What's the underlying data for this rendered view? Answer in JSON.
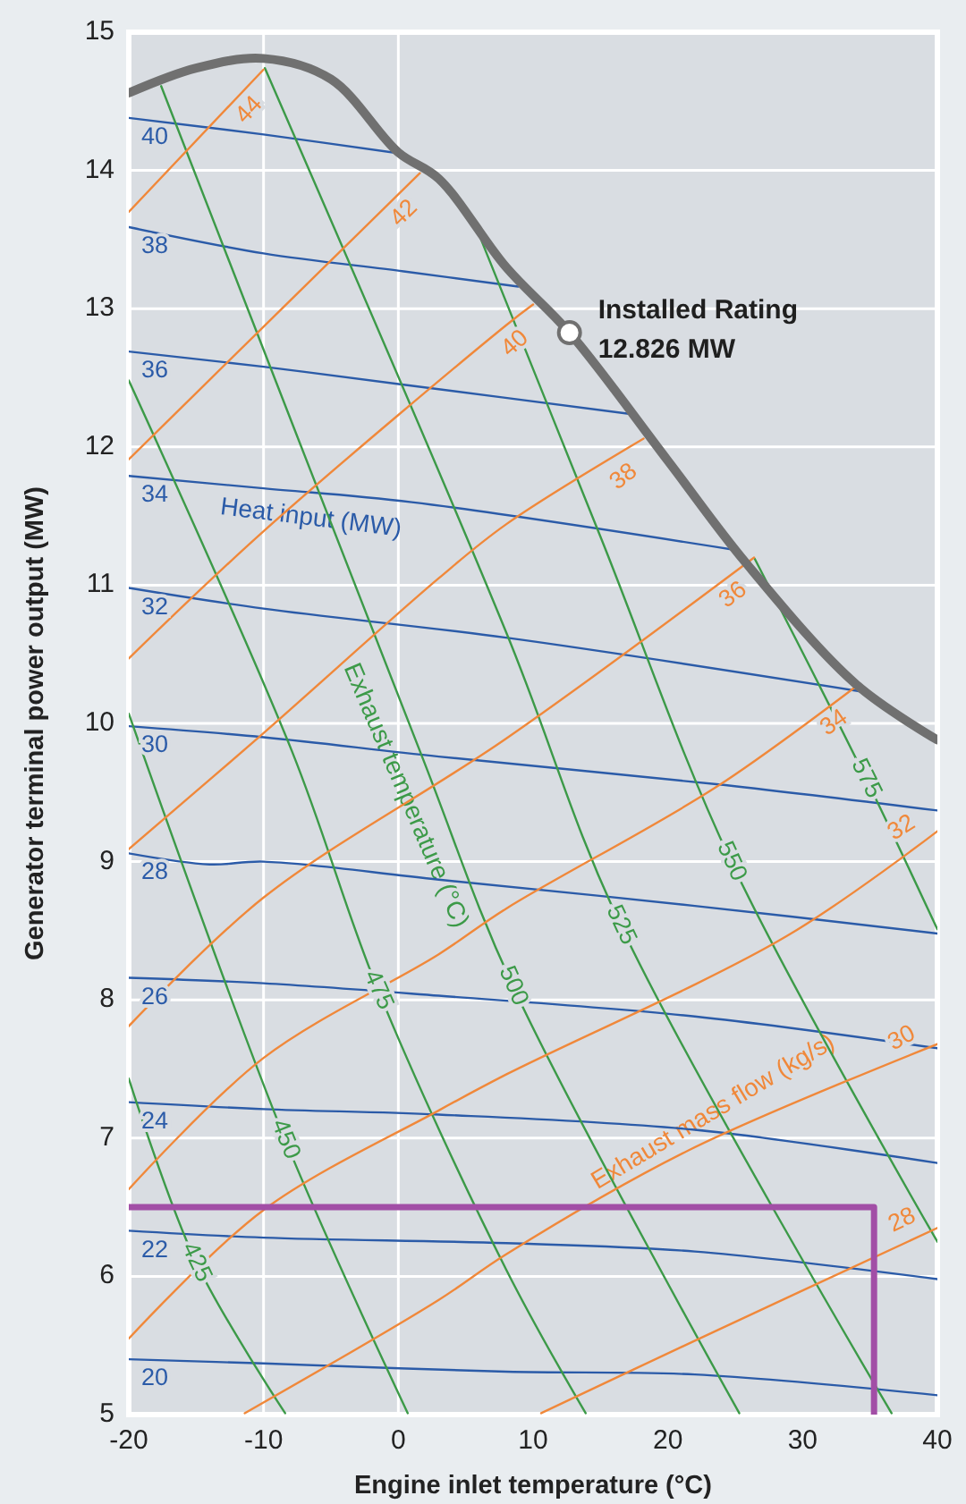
{
  "chart_data": {
    "type": "line",
    "xlabel": "Engine inlet temperature (°C)",
    "ylabel": "Generator terminal power output (MW)",
    "xlim": [
      -20,
      40
    ],
    "ylim": [
      5,
      15
    ],
    "xticks": [
      -20,
      -10,
      0,
      10,
      20,
      30,
      40
    ],
    "yticks": [
      5,
      6,
      7,
      8,
      9,
      10,
      11,
      12,
      13,
      14,
      15
    ],
    "grid": "y",
    "ref_lines": [
      {
        "axis": "x",
        "value": -10,
        "color": "#ffffff"
      },
      {
        "axis": "x",
        "value": 0,
        "color": "#ffffff"
      }
    ],
    "annotations": [
      "Heat input (MW)",
      "Exhaust temperature (°C)",
      "Exhaust mass flow (kg/s)",
      {
        "text": "Installed Rating",
        "x": 12.7,
        "y": 12.826
      }
    ],
    "series": [
      {
        "name": "40",
        "color": "#2b5ba8",
        "x": [
          -20,
          -10,
          0.3
        ],
        "values": [
          14.38,
          14.26,
          14.12
        ]
      },
      {
        "name": "38",
        "color": "#2b5ba8",
        "x": [
          -20,
          -10,
          0.4,
          8.9
        ],
        "values": [
          13.59,
          13.4,
          13.27,
          13.16
        ]
      },
      {
        "name": "36",
        "color": "#2b5ba8",
        "x": [
          -20,
          -10,
          0.4,
          17.1
        ],
        "values": [
          12.69,
          12.58,
          12.45,
          12.24
        ]
      },
      {
        "name": "34",
        "color": "#2b5ba8",
        "x": [
          -20,
          -10,
          1,
          25.3
        ],
        "values": [
          11.79,
          11.7,
          11.6,
          11.25
        ]
      },
      {
        "name": "32",
        "color": "#2b5ba8",
        "x": [
          -20,
          -10,
          8,
          34.4
        ],
        "values": [
          10.98,
          10.83,
          10.62,
          10.23
        ]
      },
      {
        "name": "30",
        "color": "#2b5ba8",
        "x": [
          -20,
          -10,
          3,
          23.6,
          40
        ],
        "values": [
          9.98,
          9.9,
          9.76,
          9.56,
          9.37
        ]
      },
      {
        "name": "28",
        "color": "#2b5ba8",
        "x": [
          -20,
          -14,
          -10,
          3,
          22,
          40
        ],
        "values": [
          9.06,
          8.98,
          9.0,
          8.87,
          8.68,
          8.48
        ]
      },
      {
        "name": "26",
        "color": "#2b5ba8",
        "x": [
          -20,
          -10,
          3,
          22,
          40
        ],
        "values": [
          8.16,
          8.12,
          8.03,
          7.88,
          7.65
        ]
      },
      {
        "name": "24",
        "color": "#2b5ba8",
        "x": [
          -20,
          -10,
          3,
          22,
          40
        ],
        "values": [
          7.26,
          7.21,
          7.17,
          7.06,
          6.82
        ]
      },
      {
        "name": "22",
        "color": "#2b5ba8",
        "x": [
          -20,
          -10,
          8,
          22,
          40
        ],
        "values": [
          6.33,
          6.28,
          6.24,
          6.18,
          5.98
        ]
      },
      {
        "name": "20",
        "color": "#2b5ba8",
        "x": [
          -20,
          -10,
          8,
          22,
          40
        ],
        "values": [
          5.4,
          5.37,
          5.31,
          5.29,
          5.14
        ]
      },
      {
        "name": "425",
        "color": "#3c9a48",
        "x": [
          -20,
          -15,
          -8.4
        ],
        "values": [
          7.43,
          6.1,
          5.01
        ]
      },
      {
        "name": "450",
        "color": "#3c9a48",
        "x": [
          -20,
          -8.4,
          0.7
        ],
        "values": [
          10.07,
          6.99,
          5.01
        ]
      },
      {
        "name": "475",
        "color": "#3c9a48",
        "x": [
          -20,
          -7.9,
          -1.5,
          8,
          13.9
        ],
        "values": [
          12.48,
          9.8,
          8.07,
          6.05,
          5.01
        ]
      },
      {
        "name": "500",
        "color": "#3c9a48",
        "x": [
          -17.6,
          1.6,
          8.5,
          25.3
        ],
        "values": [
          14.61,
          9.8,
          8.1,
          5.01
        ]
      },
      {
        "name": "525",
        "color": "#3c9a48",
        "x": [
          -9.9,
          8,
          16.5,
          36.6
        ],
        "values": [
          14.74,
          10.66,
          8.54,
          5.01
        ]
      },
      {
        "name": "550",
        "color": "#3c9a48",
        "x": [
          6.1,
          15,
          24.7,
          40
        ],
        "values": [
          13.51,
          11.35,
          9.0,
          6.25
        ]
      },
      {
        "name": "575",
        "color": "#3c9a48",
        "x": [
          26.45,
          34.7,
          40
        ],
        "values": [
          11.19,
          9.6,
          8.51
        ]
      },
      {
        "name": "44",
        "color": "#f0883a",
        "x": [
          -20,
          -10
        ],
        "values": [
          13.7,
          14.73
        ]
      },
      {
        "name": "42",
        "color": "#f0883a",
        "x": [
          -20,
          -10,
          1.6
        ],
        "values": [
          11.91,
          12.87,
          13.98
        ]
      },
      {
        "name": "40",
        "color": "#f0883a",
        "x": [
          -20,
          -10,
          8,
          10
        ],
        "values": [
          10.47,
          11.39,
          12.88,
          13.03
        ]
      },
      {
        "name": "38",
        "color": "#f0883a",
        "x": [
          -20,
          -10,
          3,
          8,
          18.2
        ],
        "values": [
          9.09,
          9.93,
          11.05,
          11.44,
          12.06
        ]
      },
      {
        "name": "36",
        "color": "#f0883a",
        "x": [
          -20,
          -10,
          8,
          26.4
        ],
        "values": [
          7.81,
          8.74,
          9.89,
          11.2
        ]
      },
      {
        "name": "34",
        "color": "#f0883a",
        "x": [
          -20,
          -10,
          3,
          8,
          23.6,
          34
        ],
        "values": [
          6.63,
          7.58,
          8.33,
          8.66,
          9.54,
          10.27
        ]
      },
      {
        "name": "32",
        "color": "#f0883a",
        "x": [
          -20,
          -10,
          3,
          8,
          28.8,
          40
        ],
        "values": [
          5.55,
          6.48,
          7.2,
          7.46,
          8.46,
          9.22
        ]
      },
      {
        "name": "30",
        "color": "#f0883a",
        "x": [
          -11.4,
          3,
          8,
          21.5,
          40
        ],
        "values": [
          5.01,
          5.83,
          6.16,
          6.91,
          7.68
        ]
      },
      {
        "name": "28",
        "color": "#f0883a",
        "x": [
          10.6,
          21.9,
          40
        ],
        "values": [
          5.01,
          5.53,
          6.35
        ]
      },
      {
        "color": "#707070",
        "x": [
          -20,
          -15,
          -10,
          -5,
          0,
          3,
          8,
          12.7,
          20,
          25.8,
          34,
          40
        ],
        "values": [
          14.56,
          14.74,
          14.81,
          14.66,
          14.13,
          13.94,
          13.3,
          12.826,
          11.9,
          11.16,
          10.28,
          9.88
        ]
      },
      {
        "color": "#a24ea6",
        "x": [
          -20,
          35.3,
          35.3
        ],
        "values": [
          6.5,
          6.5,
          5
        ]
      },
      {
        "type": "scatter",
        "marker": "circle",
        "color": "#707070",
        "x": [
          12.7
        ],
        "values": [
          12.826
        ],
        "value_labels": [
          "12.826 MW"
        ]
      }
    ]
  }
}
